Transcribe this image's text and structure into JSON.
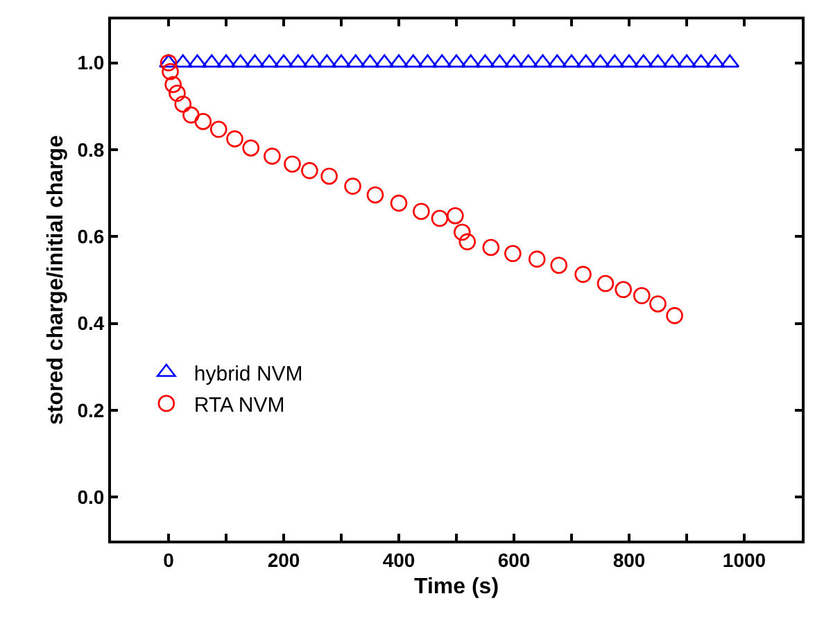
{
  "chart_data": {
    "type": "scatter",
    "xlabel": "Time (s)",
    "ylabel": "stored charge/initial charge",
    "xlim": [
      -100,
      1100
    ],
    "xticks": [
      0,
      {
        "value": 100,
        "label": null
      },
      200,
      {
        "value": 300,
        "label": null
      },
      400,
      {
        "value": 500,
        "label": null
      },
      600,
      {
        "value": 700,
        "label": null
      },
      800,
      {
        "value": 900,
        "label": null
      },
      1000
    ],
    "ylim": [
      -0.1,
      1.1
    ],
    "yticks": [
      "0.0",
      0.2,
      0.4,
      0.6,
      0.8,
      "1.0"
    ],
    "legend": "bottom left",
    "series": [
      {
        "name": "hybrid NVM",
        "color": "#0000ff",
        "marker": "triangle",
        "x": [
          0,
          25,
          50,
          75,
          100,
          125,
          150,
          175,
          200,
          225,
          250,
          275,
          300,
          325,
          350,
          375,
          400,
          425,
          450,
          475,
          500,
          525,
          550,
          575,
          600,
          625,
          650,
          675,
          700,
          725,
          750,
          775,
          800,
          825,
          850,
          875,
          900,
          925,
          950,
          975
        ],
        "values": [
          1.0,
          1.0,
          1.0,
          1.0,
          1.0,
          1.0,
          1.0,
          1.0,
          1.0,
          1.0,
          1.0,
          1.0,
          1.0,
          1.0,
          1.0,
          1.0,
          1.0,
          1.0,
          1.0,
          1.0,
          1.0,
          1.0,
          1.0,
          1.0,
          1.0,
          1.0,
          1.0,
          1.0,
          1.0,
          1.0,
          1.0,
          1.0,
          1.0,
          1.0,
          1.0,
          1.0,
          1.0,
          1.0,
          1.0,
          1.0
        ]
      },
      {
        "name": "RTA NVM",
        "color": "#ff0000",
        "marker": "circle",
        "x": [
          0,
          3,
          8,
          15,
          25,
          39,
          60,
          87,
          115,
          143,
          180,
          215,
          245,
          279,
          320,
          359,
          400,
          439,
          471,
          498,
          510,
          519,
          560,
          598,
          640,
          678,
          720,
          759,
          790,
          822,
          850,
          879
        ],
        "values": [
          1.0,
          0.98,
          0.95,
          0.93,
          0.905,
          0.88,
          0.865,
          0.847,
          0.825,
          0.804,
          0.785,
          0.767,
          0.752,
          0.739,
          0.716,
          0.696,
          0.677,
          0.658,
          0.642,
          0.648,
          0.61,
          0.588,
          0.575,
          0.561,
          0.548,
          0.534,
          0.513,
          0.492,
          0.478,
          0.464,
          0.445,
          0.418
        ]
      }
    ]
  }
}
